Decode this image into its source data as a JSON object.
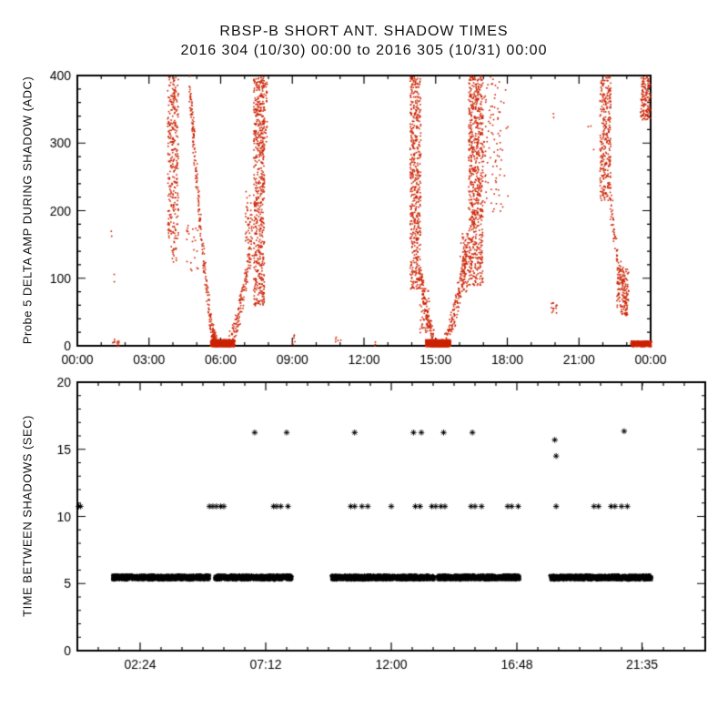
{
  "page": {
    "title_line1": "RBSP-B SHORT ANT. SHADOW TIMES",
    "title_line2": "2016 304 (10/30) 00:00 to 2016 305 (10/31) 00:00",
    "background": "#ffffff",
    "axis_color": "#000000"
  },
  "chart_data": [
    {
      "type": "scatter",
      "panel": "top",
      "ylabel": "Probe 5 DELTA AMP DURING SHADOW (ADC)",
      "xlabel": "",
      "xlim_hours": [
        0,
        24
      ],
      "ylim": [
        0,
        400
      ],
      "xticks": [
        {
          "h": 0,
          "label": "00:00"
        },
        {
          "h": 3,
          "label": "03:00"
        },
        {
          "h": 6,
          "label": "06:00"
        },
        {
          "h": 9,
          "label": "09:00"
        },
        {
          "h": 12,
          "label": "12:00"
        },
        {
          "h": 15,
          "label": "15:00"
        },
        {
          "h": 18,
          "label": "18:00"
        },
        {
          "h": 21,
          "label": "21:00"
        },
        {
          "h": 24,
          "label": "00:00"
        }
      ],
      "x_minor_step_hours": 1,
      "yticks": [
        0,
        100,
        200,
        300,
        400
      ],
      "y_minor_step": 20,
      "marker": "dot",
      "point_color": "#cc2200",
      "clusters": [
        {
          "kind": "box",
          "t": [
            1.45,
            1.75
          ],
          "v": [
            0,
            12
          ],
          "n": 12
        },
        {
          "kind": "box",
          "t": [
            1.5,
            1.56
          ],
          "v": [
            95,
            110
          ],
          "n": 2
        },
        {
          "kind": "box",
          "t": [
            1.38,
            1.43
          ],
          "v": [
            163,
            172
          ],
          "n": 2
        },
        {
          "kind": "box",
          "t": [
            3.75,
            4.2
          ],
          "v": [
            160,
            400
          ],
          "n": 300
        },
        {
          "kind": "box",
          "t": [
            3.9,
            4.12
          ],
          "v": [
            118,
            160
          ],
          "n": 16
        },
        {
          "kind": "polyline",
          "pts": [
            [
              4.65,
              395
            ],
            [
              4.85,
              300
            ],
            [
              5.1,
              190
            ],
            [
              5.35,
              95
            ],
            [
              5.6,
              25
            ],
            [
              5.78,
              3
            ]
          ],
          "dt": 0.04,
          "dv": 14,
          "n": 270
        },
        {
          "kind": "box",
          "t": [
            4.55,
            5.05
          ],
          "v": [
            100,
            180
          ],
          "n": 22
        },
        {
          "kind": "box",
          "t": [
            5.55,
            6.55
          ],
          "v": [
            0,
            10
          ],
          "n": 550
        },
        {
          "kind": "box",
          "t": [
            5.65,
            6.45
          ],
          "v": [
            0,
            4
          ],
          "n": 350
        },
        {
          "kind": "polyline",
          "pts": [
            [
              6.35,
              4
            ],
            [
              6.7,
              40
            ],
            [
              7.0,
              95
            ],
            [
              7.25,
              150
            ]
          ],
          "dt": 0.05,
          "dv": 18,
          "n": 140
        },
        {
          "kind": "box",
          "t": [
            7.0,
            7.3
          ],
          "v": [
            150,
            230
          ],
          "n": 45
        },
        {
          "kind": "box",
          "t": [
            7.35,
            7.8
          ],
          "v": [
            60,
            400
          ],
          "n": 560
        },
        {
          "kind": "box",
          "t": [
            7.6,
            7.92
          ],
          "v": [
            290,
            400
          ],
          "n": 70
        },
        {
          "kind": "box",
          "t": [
            8.9,
            9.1
          ],
          "v": [
            2,
            18
          ],
          "n": 6
        },
        {
          "kind": "box",
          "t": [
            10.7,
            11.0
          ],
          "v": [
            2,
            15
          ],
          "n": 5
        },
        {
          "kind": "box",
          "t": [
            12.35,
            12.5
          ],
          "v": [
            0,
            8
          ],
          "n": 3
        },
        {
          "kind": "box",
          "t": [
            13.9,
            14.35
          ],
          "v": [
            85,
            400
          ],
          "n": 520
        },
        {
          "kind": "polyline",
          "pts": [
            [
              14.35,
              110
            ],
            [
              14.6,
              45
            ],
            [
              14.87,
              8
            ]
          ],
          "dt": 0.05,
          "dv": 15,
          "n": 110
        },
        {
          "kind": "box",
          "t": [
            14.3,
            14.7
          ],
          "v": [
            20,
            100
          ],
          "n": 50
        },
        {
          "kind": "box",
          "t": [
            14.55,
            15.6
          ],
          "v": [
            0,
            10
          ],
          "n": 650
        },
        {
          "kind": "box",
          "t": [
            14.7,
            15.5
          ],
          "v": [
            0,
            4
          ],
          "n": 420
        },
        {
          "kind": "polyline",
          "pts": [
            [
              15.35,
              4
            ],
            [
              15.7,
              40
            ],
            [
              16.0,
              90
            ],
            [
              16.28,
              140
            ]
          ],
          "dt": 0.05,
          "dv": 18,
          "n": 160
        },
        {
          "kind": "box",
          "t": [
            16.0,
            16.35
          ],
          "v": [
            80,
            170
          ],
          "n": 60
        },
        {
          "kind": "box",
          "t": [
            16.35,
            16.95
          ],
          "v": [
            90,
            400
          ],
          "n": 700
        },
        {
          "kind": "box",
          "t": [
            16.9,
            17.7
          ],
          "v": [
            190,
            400
          ],
          "n": 85
        },
        {
          "kind": "box",
          "t": [
            17.6,
            18.0
          ],
          "v": [
            200,
            390
          ],
          "n": 15
        },
        {
          "kind": "box",
          "t": [
            19.8,
            20.05
          ],
          "v": [
            48,
            66
          ],
          "n": 14
        },
        {
          "kind": "box",
          "t": [
            19.85,
            19.95
          ],
          "v": [
            328,
            345
          ],
          "n": 2
        },
        {
          "kind": "box",
          "t": [
            21.3,
            21.6
          ],
          "v": [
            280,
            330
          ],
          "n": 3
        },
        {
          "kind": "box",
          "t": [
            21.85,
            22.3
          ],
          "v": [
            215,
            400
          ],
          "n": 300
        },
        {
          "kind": "polyline",
          "pts": [
            [
              22.3,
              210
            ],
            [
              22.6,
              130
            ],
            [
              22.95,
              70
            ]
          ],
          "dt": 0.05,
          "dv": 18,
          "n": 90
        },
        {
          "kind": "box",
          "t": [
            22.55,
            23.05
          ],
          "v": [
            45,
            120
          ],
          "n": 130
        },
        {
          "kind": "box",
          "t": [
            23.15,
            24.0
          ],
          "v": [
            0,
            8
          ],
          "n": 450
        },
        {
          "kind": "box",
          "t": [
            23.55,
            23.97
          ],
          "v": [
            335,
            400
          ],
          "n": 140
        }
      ]
    },
    {
      "type": "scatter",
      "panel": "bottom",
      "ylabel": "TIME BETWEEN SHADOWS (SEC)",
      "xlabel": "",
      "xlim_hours": [
        0,
        24
      ],
      "ylim": [
        0,
        20
      ],
      "xticks": [
        {
          "h": 2.4,
          "label": "02:24"
        },
        {
          "h": 7.2,
          "label": "07:12"
        },
        {
          "h": 12,
          "label": "12:00"
        },
        {
          "h": 16.8,
          "label": "16:48"
        },
        {
          "h": 21.5833,
          "label": "21:35"
        }
      ],
      "x_minor_step_hours": 0.8,
      "yticks": [
        0,
        5,
        10,
        15,
        20
      ],
      "y_minor_step": 1,
      "marker": "asterisk",
      "point_color": "#000000",
      "band": {
        "value": 5.45,
        "jitter": 0.18,
        "points_per_hour": 190,
        "segments": [
          [
            1.35,
            5.05
          ],
          [
            5.25,
            8.2
          ],
          [
            9.7,
            13.65
          ],
          [
            13.75,
            16.9
          ],
          [
            18.05,
            21.95
          ]
        ]
      },
      "mid_row": {
        "value": 10.75,
        "hours": [
          0.05,
          0.12,
          5.05,
          5.18,
          5.32,
          5.48,
          5.6,
          7.5,
          7.62,
          7.78,
          8.05,
          10.45,
          10.6,
          10.88,
          11.1,
          12.0,
          12.92,
          13.1,
          13.55,
          13.7,
          13.9,
          14.05,
          15.05,
          15.2,
          15.45,
          16.45,
          16.6,
          16.85,
          18.3,
          19.75,
          19.92,
          20.4,
          20.55,
          20.8,
          21.02
        ]
      },
      "high_points": [
        {
          "h": 6.78,
          "v": 16.25
        },
        {
          "h": 8.0,
          "v": 16.25
        },
        {
          "h": 10.6,
          "v": 16.25
        },
        {
          "h": 12.85,
          "v": 16.25
        },
        {
          "h": 13.15,
          "v": 16.25
        },
        {
          "h": 14.0,
          "v": 16.25
        },
        {
          "h": 15.1,
          "v": 16.25
        },
        {
          "h": 18.25,
          "v": 15.7
        },
        {
          "h": 18.3,
          "v": 14.5
        },
        {
          "h": 20.9,
          "v": 16.35
        }
      ]
    }
  ]
}
